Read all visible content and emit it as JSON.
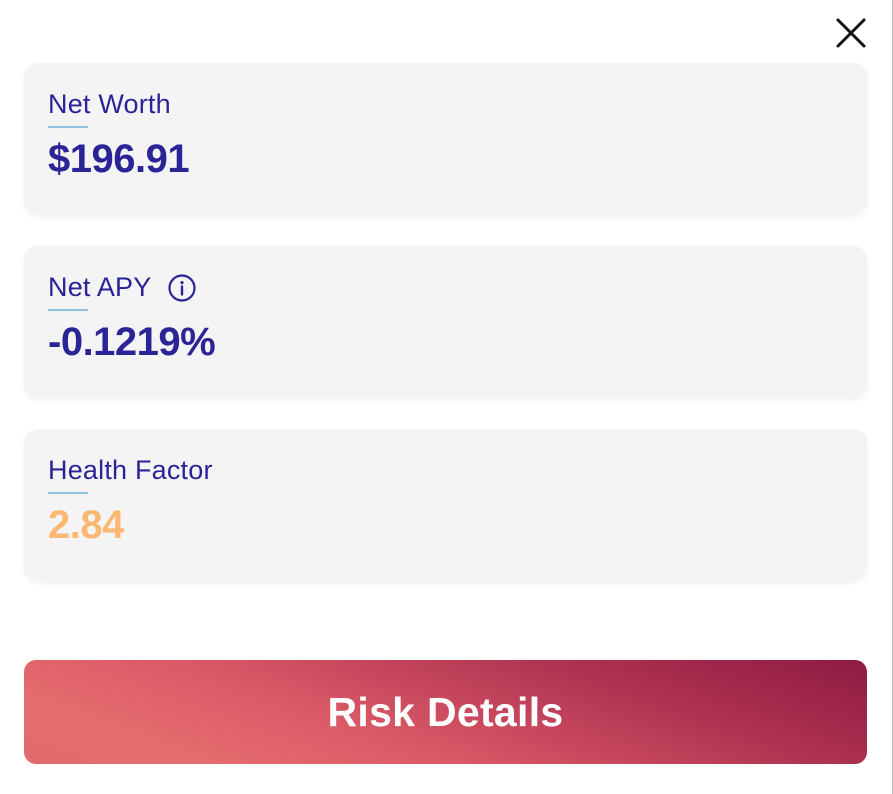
{
  "modal": {
    "close_icon": "close-icon"
  },
  "cards": {
    "net_worth": {
      "label": "Net Worth",
      "value": "$196.91"
    },
    "net_apy": {
      "label": "Net APY",
      "value": "-0.1219%",
      "icon": "info-icon"
    },
    "health_factor": {
      "label": "Health Factor",
      "value": "2.84",
      "value_color": "#fbb873"
    }
  },
  "risk_button": {
    "label": "Risk Details"
  },
  "colors": {
    "primary_text": "#2a2496",
    "card_bg": "#f4f4f5",
    "underline": "#8fc3dc",
    "button_gradient_start": "#8e1a42",
    "button_gradient_end": "#e66d6e"
  }
}
